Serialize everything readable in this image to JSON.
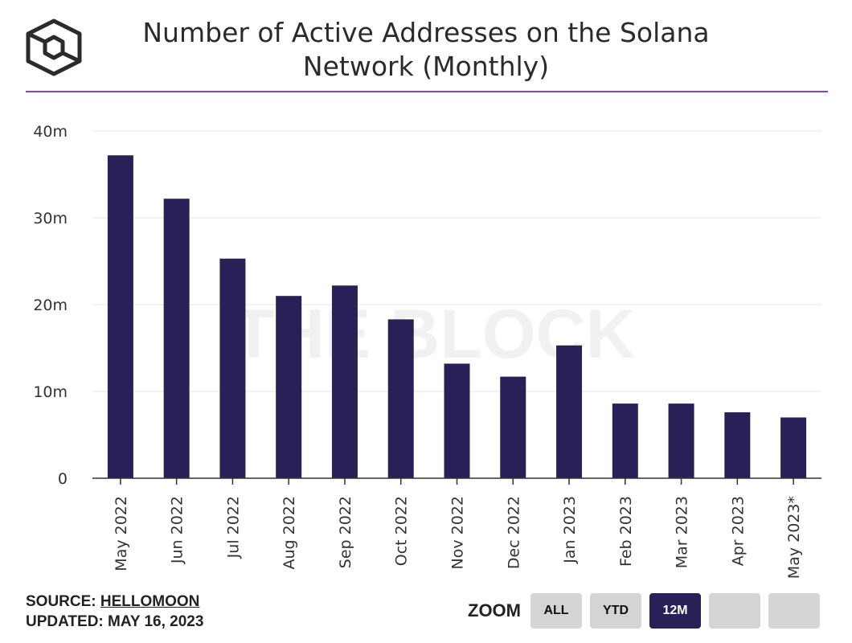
{
  "title_line1": "Number of Active Addresses on the Solana",
  "title_line2": "Network (Monthly)",
  "watermark": "THE BLOCK",
  "footer": {
    "source_label": "SOURCE:",
    "source_name": "HELLOMOON",
    "updated": "UPDATED: MAY 16, 2023"
  },
  "zoom": {
    "label": "ZOOM",
    "buttons": [
      "ALL",
      "YTD",
      "12M",
      "",
      ""
    ],
    "active": "12M"
  },
  "colors": {
    "bar": "#282157",
    "accent": "#8a3fd1",
    "grid": "#e6e6e6"
  },
  "chart_data": {
    "type": "bar",
    "categories": [
      "May 2022",
      "Jun 2022",
      "Jul 2022",
      "Aug 2022",
      "Sep 2022",
      "Oct 2022",
      "Nov 2022",
      "Dec 2022",
      "Jan 2023",
      "Feb 2023",
      "Mar 2023",
      "Apr 2023",
      "May 2023*"
    ],
    "values": [
      37.2,
      32.2,
      25.3,
      21.0,
      22.2,
      18.3,
      13.2,
      11.7,
      15.3,
      8.6,
      8.6,
      7.6,
      7.0
    ],
    "unit": "m",
    "ylim": [
      0,
      40
    ],
    "yticks": [
      0,
      10,
      20,
      30,
      40
    ],
    "ytick_labels": [
      "0",
      "10m",
      "20m",
      "30m",
      "40m"
    ],
    "grid": true,
    "legend": "none"
  }
}
